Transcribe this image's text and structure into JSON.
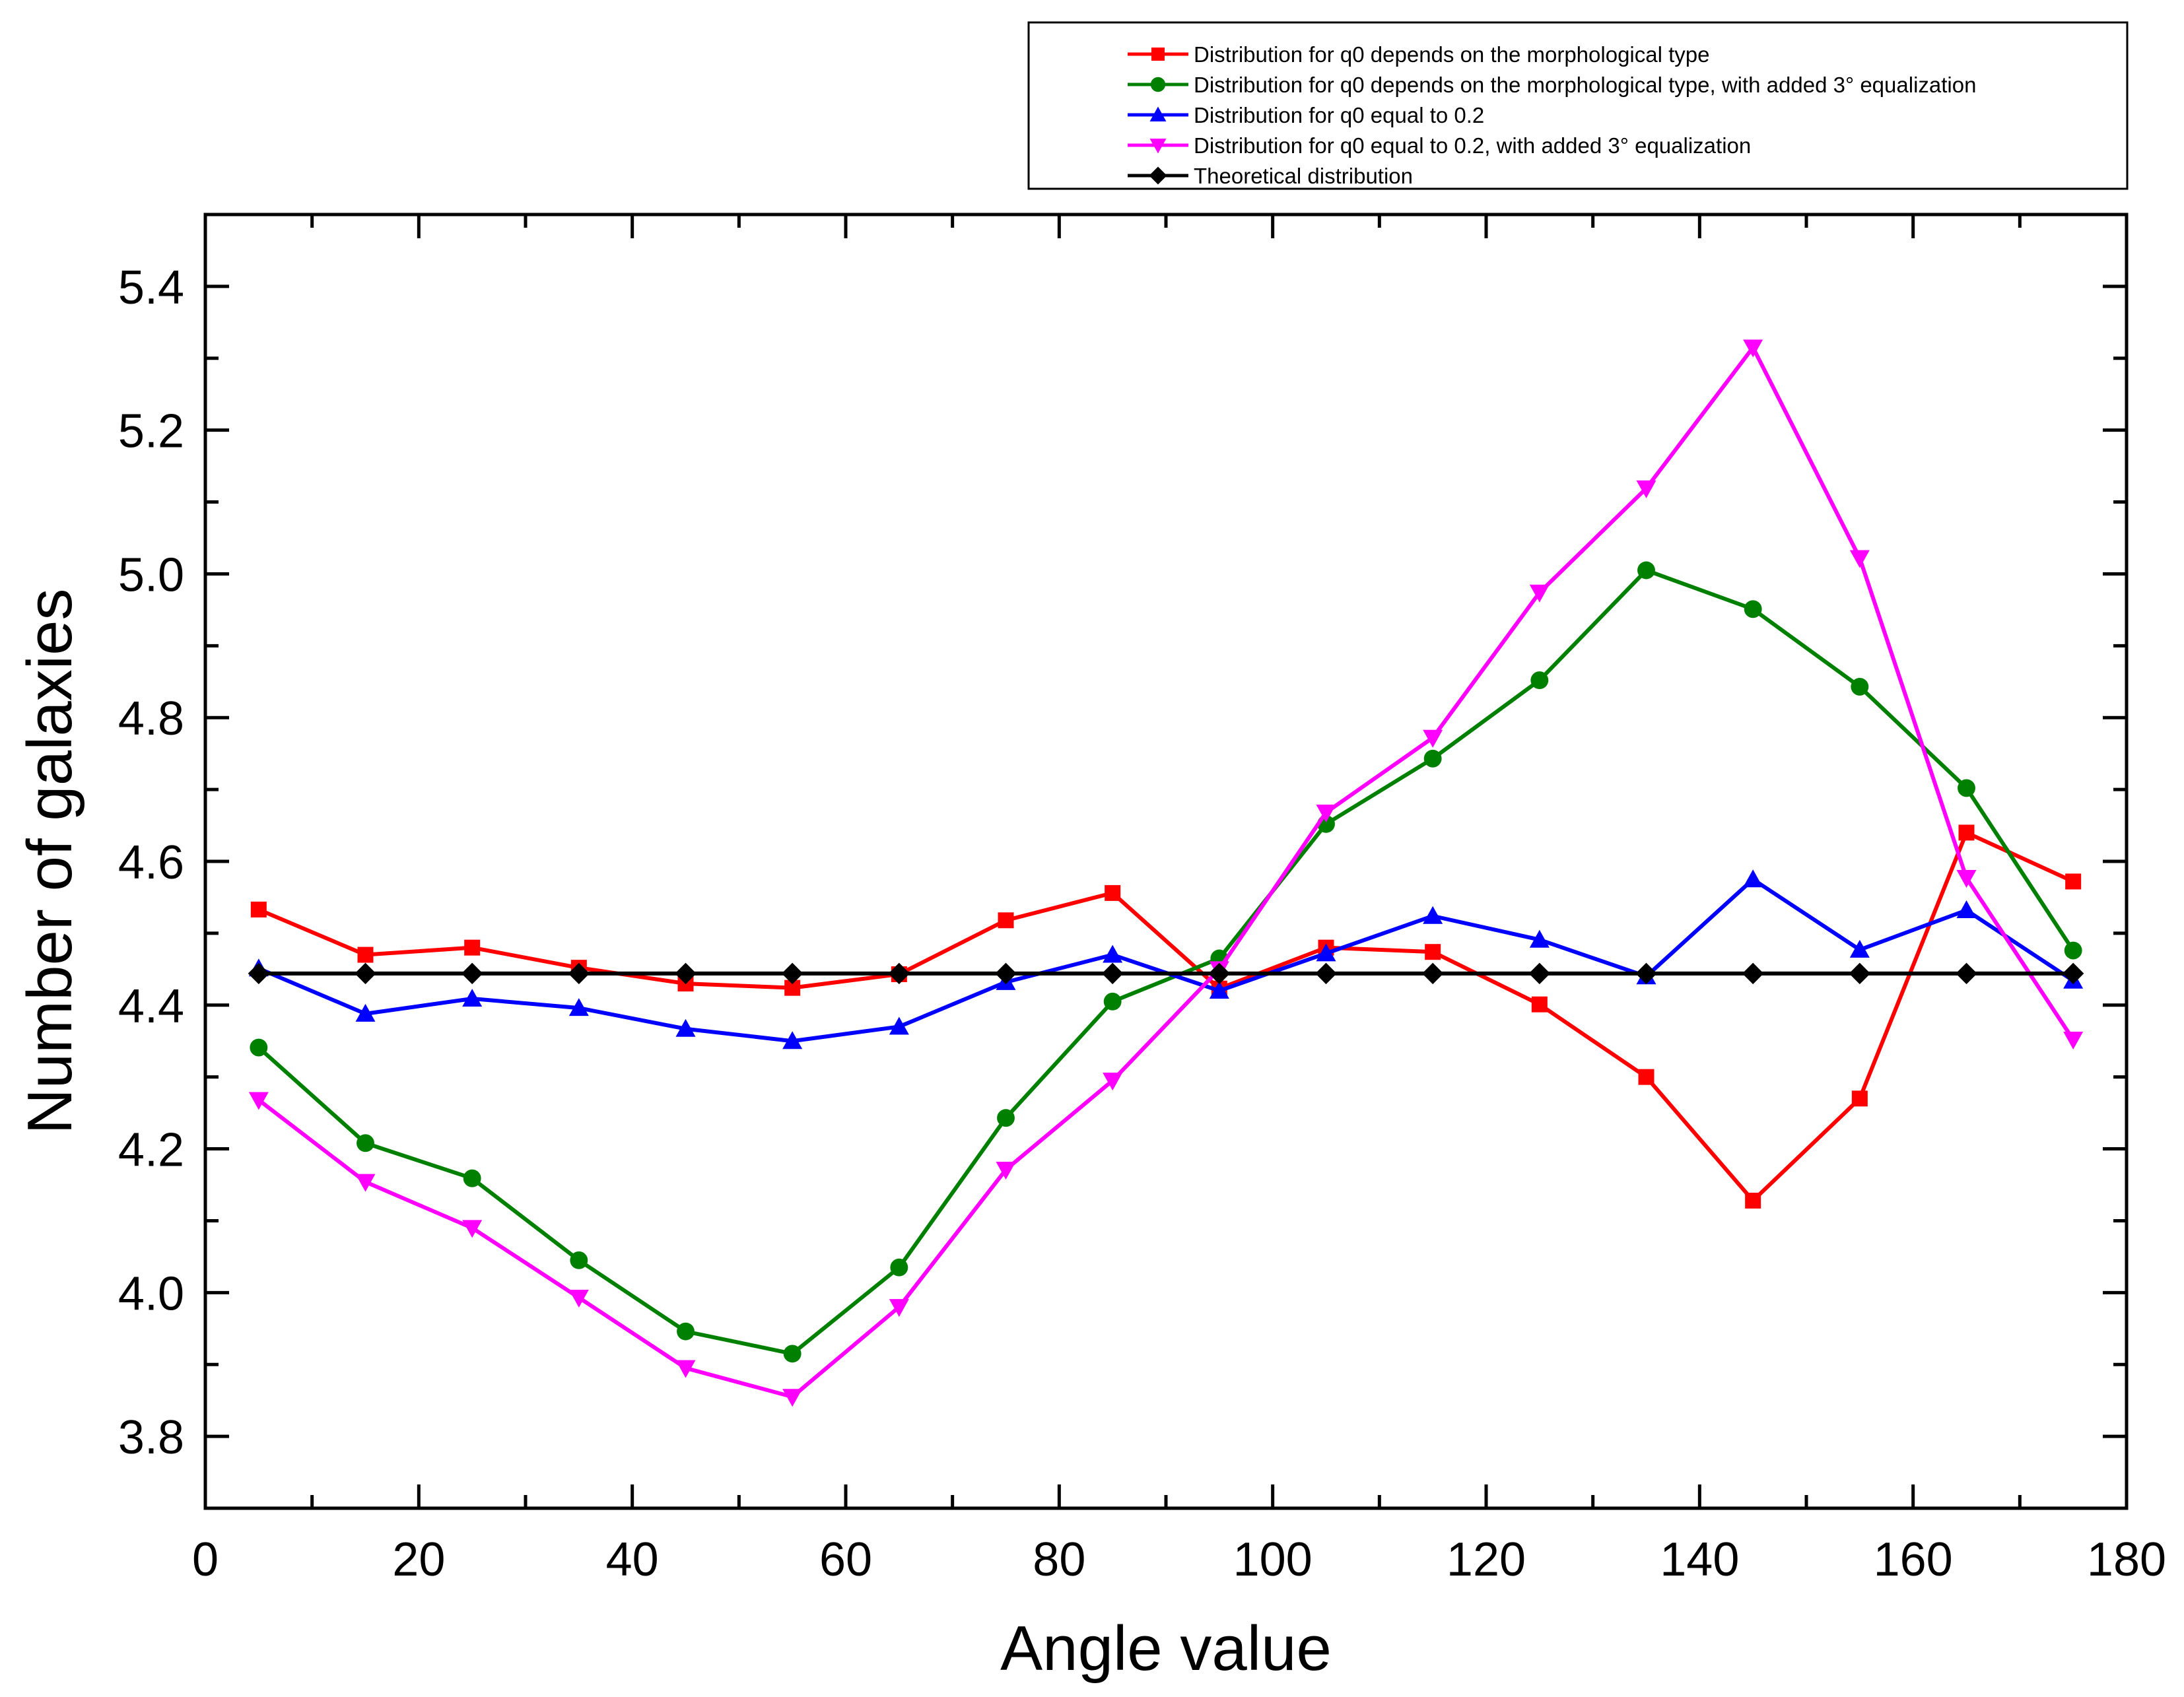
{
  "chart_data": {
    "type": "line",
    "title": "",
    "xlabel": "Angle value",
    "ylabel": "Number of galaxies",
    "xlim": [
      0,
      180
    ],
    "ylim": [
      3.7,
      5.5
    ],
    "xticks": [
      0,
      20,
      40,
      60,
      80,
      100,
      120,
      140,
      160,
      180
    ],
    "xtick_labels": [
      "0",
      "20",
      "40",
      "60",
      "80",
      "100",
      "120",
      "140",
      "160",
      "180"
    ],
    "yticks": [
      3.8,
      4.0,
      4.2,
      4.4,
      4.6,
      4.8,
      5.0,
      5.2,
      5.4
    ],
    "ytick_labels": [
      "3.8",
      "4.0",
      "4.2",
      "4.4",
      "4.6",
      "4.8",
      "5.0",
      "5.2",
      "5.4"
    ],
    "grid": false,
    "legend_position": "top-right, above plot",
    "x": [
      5,
      15,
      25,
      35,
      45,
      55,
      65,
      75,
      85,
      95,
      105,
      115,
      125,
      135,
      145,
      155,
      165,
      175
    ],
    "series": [
      {
        "name": "Distribution for q0 depends on the morphological type",
        "color": "#ff0000",
        "marker": "square",
        "values": [
          4.533,
          4.47,
          4.48,
          4.452,
          4.43,
          4.424,
          4.443,
          4.518,
          4.556,
          4.423,
          4.48,
          4.474,
          4.401,
          4.3,
          4.128,
          4.27,
          4.64,
          4.572
        ]
      },
      {
        "name": "Distribution for q0 depends on the morphological type, with added 3° equalization",
        "color": "#008000",
        "marker": "circle",
        "values": [
          4.341,
          4.208,
          4.159,
          4.045,
          3.946,
          3.915,
          4.035,
          4.243,
          4.405,
          4.465,
          4.652,
          4.743,
          4.852,
          5.005,
          4.951,
          4.843,
          4.702,
          4.476
        ]
      },
      {
        "name": "Distribution for q0 equal to 0.2",
        "color": "#0000ff",
        "marker": "triangle-up",
        "values": [
          4.451,
          4.388,
          4.409,
          4.396,
          4.367,
          4.35,
          4.37,
          4.432,
          4.47,
          4.42,
          4.472,
          4.524,
          4.491,
          4.44,
          4.575,
          4.477,
          4.532,
          4.434
        ]
      },
      {
        "name": "Distribution for q0 equal to 0.2, with added 3° equalization",
        "color": "#ff00ff",
        "marker": "triangle-down",
        "values": [
          4.268,
          4.154,
          4.09,
          3.993,
          3.895,
          3.855,
          3.98,
          4.171,
          4.295,
          4.45,
          4.668,
          4.772,
          4.974,
          5.119,
          5.315,
          5.022,
          4.577,
          4.352
        ]
      },
      {
        "name": "Theoretical distribution",
        "color": "#000000",
        "marker": "diamond",
        "values": [
          4.444,
          4.444,
          4.444,
          4.444,
          4.444,
          4.444,
          4.444,
          4.444,
          4.444,
          4.444,
          4.444,
          4.444,
          4.444,
          4.444,
          4.444,
          4.444,
          4.444,
          4.444
        ]
      }
    ]
  }
}
